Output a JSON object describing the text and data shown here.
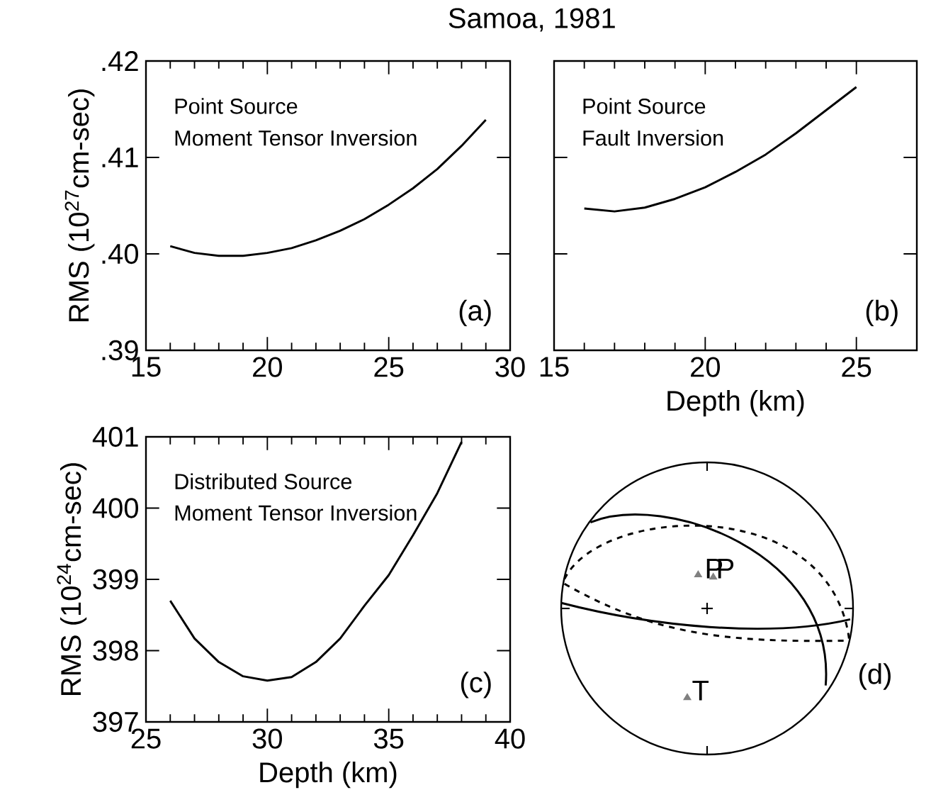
{
  "chart_data": [
    {
      "type": "line",
      "title": "Samoa, 1981",
      "ylabel": "RMS (10$^{27}$cm-sec)",
      "annotations": [
        "Point Source",
        "Moment Tensor Inversion",
        "(a)"
      ],
      "xlim": [
        15,
        30
      ],
      "ylim": [
        0.39,
        0.42
      ],
      "xticks": [
        15,
        20,
        25,
        30
      ],
      "yticks": [
        {
          "value": 0.39,
          "label": ".39"
        },
        {
          "value": 0.4,
          "label": ".40"
        },
        {
          "value": 0.41,
          "label": ".41"
        },
        {
          "value": 0.42,
          "label": ".42"
        }
      ],
      "color": "#000000",
      "marker": "none",
      "x": [
        16,
        17,
        18,
        19,
        20,
        21,
        22,
        23,
        24,
        25,
        26,
        27,
        28,
        29
      ],
      "values": [
        0.4008,
        0.4001,
        0.3998,
        0.3998,
        0.4001,
        0.4006,
        0.4014,
        0.4024,
        0.4036,
        0.4051,
        0.4068,
        0.4088,
        0.4112,
        0.4139
      ]
    },
    {
      "type": "line",
      "xlabel": "Depth (km)",
      "annotations": [
        "Point Source",
        "Fault Inversion",
        "(b)"
      ],
      "xlim": [
        15,
        27
      ],
      "ylim": [
        0.39,
        0.42
      ],
      "xticks": [
        15,
        20,
        25
      ],
      "yticks": [
        {
          "value": 0.39,
          "label": null
        },
        {
          "value": 0.4,
          "label": null
        },
        {
          "value": 0.41,
          "label": null
        },
        {
          "value": 0.42,
          "label": null
        }
      ],
      "tick_labels": "x",
      "color": "#000000",
      "marker": "none",
      "x": [
        16,
        17,
        18,
        19,
        20,
        21,
        22,
        23,
        24,
        25
      ],
      "values": [
        0.4047,
        0.4044,
        0.4048,
        0.4057,
        0.4069,
        0.4085,
        0.4103,
        0.4125,
        0.4149,
        0.4173
      ]
    },
    {
      "type": "line",
      "xlabel": "Depth (km)",
      "ylabel": "RMS (10$^{24}$cm-sec)",
      "annotations": [
        "Distributed Source",
        "Moment Tensor Inversion",
        "(c)"
      ],
      "xlim": [
        25,
        40
      ],
      "ylim": [
        397,
        401
      ],
      "xticks": [
        25,
        30,
        35,
        40
      ],
      "yticks": [
        397,
        398,
        399,
        400,
        401
      ],
      "color": "#000000",
      "marker": "none",
      "x": [
        26,
        27,
        28,
        29,
        30,
        31,
        32,
        33,
        34,
        35,
        36,
        37,
        38
      ],
      "values": [
        398.7,
        398.17,
        397.84,
        397.64,
        397.58,
        397.63,
        397.84,
        398.17,
        398.63,
        399.06,
        399.62,
        400.21,
        400.93
      ]
    },
    {
      "type": "other",
      "annotations": [
        "P",
        "P",
        "T",
        "(d)"
      ]
    }
  ]
}
